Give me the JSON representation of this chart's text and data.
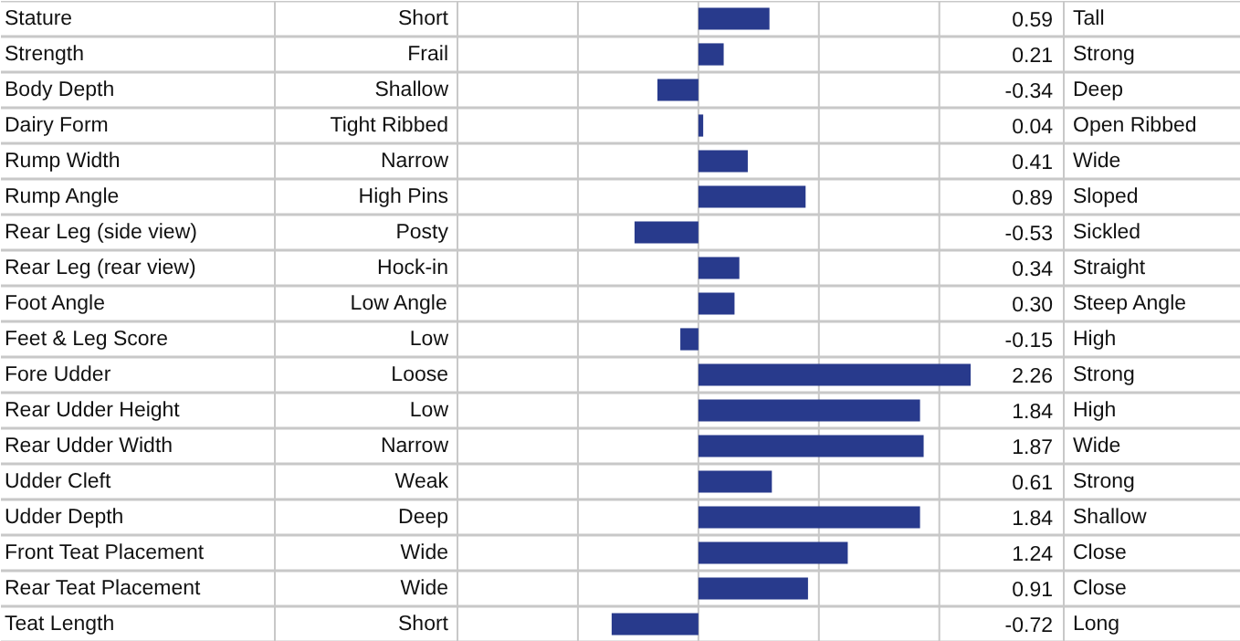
{
  "chart_data": {
    "type": "bar",
    "orientation": "horizontal",
    "color": "#283a8c",
    "grid": "x",
    "xlim": [
      -2,
      2.26
    ],
    "xticks": [
      {
        "value": -2,
        "label": null
      },
      {
        "value": -1,
        "label": null
      },
      {
        "value": 0,
        "label": null
      },
      {
        "value": 1,
        "label": null
      },
      {
        "value": 2,
        "label": null
      }
    ],
    "categories": [
      "Stature",
      "Strength",
      "Body Depth",
      "Dairy Form",
      "Rump Width",
      "Rump Angle",
      "Rear Leg (side view)",
      "Rear Leg (rear view)",
      "Foot Angle",
      "Feet & Leg Score",
      "Fore Udder",
      "Rear Udder Height",
      "Rear Udder Width",
      "Udder Cleft",
      "Udder Depth",
      "Front Teat Placement",
      "Rear Teat Placement",
      "Teat Length"
    ],
    "values": [
      0.59,
      0.21,
      -0.34,
      0.04,
      0.41,
      0.89,
      -0.53,
      0.34,
      0.3,
      -0.15,
      2.26,
      1.84,
      1.87,
      0.61,
      1.84,
      1.24,
      0.91,
      -0.72
    ],
    "value_labels": [
      "0.59",
      "0.21",
      "-0.34",
      "0.04",
      "0.41",
      "0.89",
      "-0.53",
      "0.34",
      "0.30",
      "-0.15",
      "2.26",
      "1.84",
      "1.87",
      "0.61",
      "1.84",
      "1.24",
      "0.91",
      "-0.72"
    ],
    "annotations": [
      "Short",
      "Frail",
      "Shallow",
      "Tight Ribbed",
      "Narrow",
      "High Pins",
      "Posty",
      "Hock-in",
      "Low Angle",
      "Low",
      "Loose",
      "Low",
      "Narrow",
      "Weak",
      "Deep",
      "Wide",
      "Wide",
      "Short",
      "Tall",
      "Strong",
      "Deep",
      "Open Ribbed",
      "Wide",
      "Sloped",
      "Sickled",
      "Straight",
      "Steep Angle",
      "High",
      "Strong",
      "High",
      "Wide",
      "Strong",
      "Shallow",
      "Close",
      "Close",
      "Long"
    ]
  }
}
